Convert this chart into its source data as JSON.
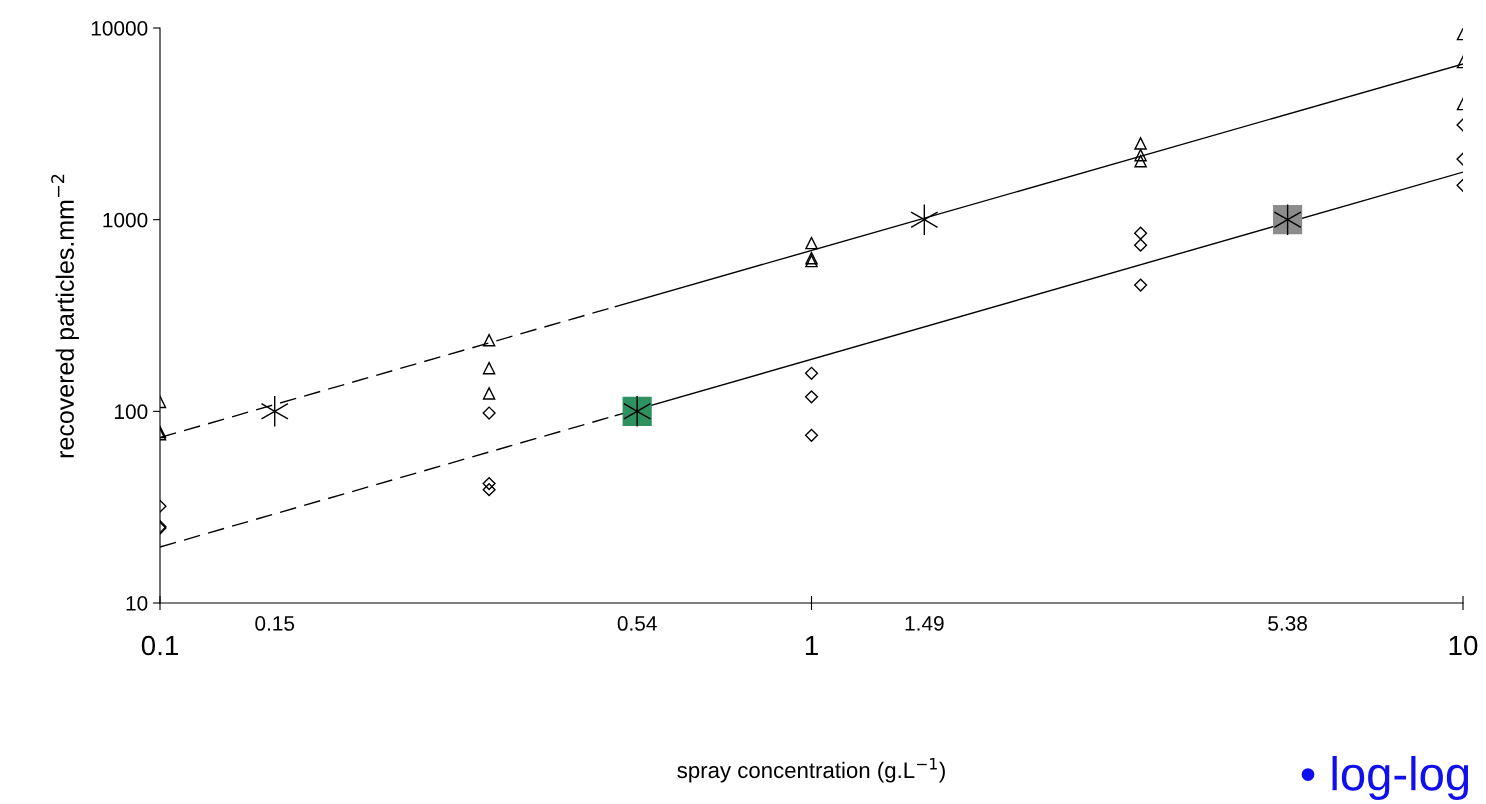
{
  "chart_data": {
    "type": "scatter",
    "xlabel": "spray concentration (g.L$^{−1}$)",
    "ylabel": "recovered particles.mm$^{−2}$",
    "log": "xy",
    "xlim": [
      0.1,
      10
    ],
    "xticks": [
      0.1,
      1,
      10
    ],
    "ylim": [
      10,
      10000
    ],
    "yticks": [
      10,
      100,
      1000,
      10000
    ],
    "grid": false,
    "legend": false,
    "series": [
      {
        "marker": "triangle",
        "color": "#000000",
        "x": [
          0.1,
          0.1,
          0.1,
          0.32,
          0.32,
          0.32,
          1,
          1,
          1,
          3.2,
          3.2,
          3.2,
          10,
          10,
          10
        ],
        "values": [
          112,
          78,
          76,
          235,
          168,
          124,
          755,
          630,
          608,
          2500,
          2170,
          2020,
          9300,
          6640,
          4010
        ]
      },
      {
        "marker": "diamond",
        "color": "#000000",
        "x": [
          0.1,
          0.1,
          0.1,
          0.32,
          0.32,
          0.32,
          1,
          1,
          1,
          3.2,
          3.2,
          3.2,
          10,
          10,
          10
        ],
        "values": [
          32,
          25,
          24.6,
          98,
          42,
          39,
          158,
          119,
          75,
          850,
          736,
          456,
          3120,
          2070,
          1510
        ]
      },
      {
        "type": "line",
        "line_style": "dashed",
        "color": "#000000",
        "x": [
          0.1,
          0.5
        ],
        "values": [
          73,
          352
        ]
      },
      {
        "type": "line",
        "line_style": "solid",
        "color": "#000000",
        "x": [
          0.5,
          10
        ],
        "values": [
          352,
          6490
        ]
      },
      {
        "type": "line",
        "line_style": "dashed",
        "color": "#000000",
        "x": [
          0.1,
          0.5
        ],
        "values": [
          19.6,
          95
        ]
      },
      {
        "type": "line",
        "line_style": "solid",
        "color": "#000000",
        "x": [
          0.5,
          10
        ],
        "values": [
          95,
          1770
        ]
      },
      {
        "marker": "square",
        "colors": [
          "#2e9160",
          "#8c8c8c"
        ],
        "x": [
          0.54,
          5.38
        ],
        "values": [
          100,
          1000
        ]
      },
      {
        "marker": "cross",
        "color": "#000000",
        "x": [
          0.15,
          0.54,
          1.49,
          5.38
        ],
        "values": [
          100,
          100,
          1000,
          1000
        ]
      }
    ],
    "annotations": [
      "0.15",
      "0.54",
      "1.49",
      "5.38",
      "• log-log"
    ]
  }
}
